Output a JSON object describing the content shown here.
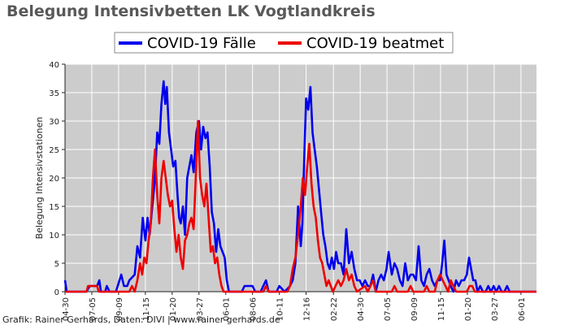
{
  "chart_data": {
    "type": "line",
    "title": "Belegung Intensivbetten LK Vogtlandkreis",
    "ylabel": "Belegung Intensivstationen",
    "xlabel": "",
    "ylim": [
      0,
      40
    ],
    "yticks": [
      0,
      5,
      10,
      15,
      20,
      25,
      30,
      35,
      40
    ],
    "grid": true,
    "legend_placement": "top-center",
    "background_color": "#cccccc",
    "x_tick_labels": [
      "04-30",
      "07-05",
      "09-09",
      "11-15",
      "01-20",
      "03-27",
      "06-01",
      "08-06",
      "10-11",
      "12-16",
      "02-22",
      "04-30",
      "07-05",
      "09-09",
      "11-15",
      "01-20",
      "03-27",
      "06-01"
    ],
    "x_tick_positions": [
      0,
      5,
      10,
      15,
      20,
      25,
      30,
      35,
      40,
      45,
      50.1,
      55.1,
      60.1,
      65.1,
      70.1,
      75.1,
      80.1,
      85.1
    ],
    "x_max": 88,
    "series": [
      {
        "name": "COVID-19 Fälle",
        "color": "#0000ee",
        "points": [
          [
            0,
            2
          ],
          [
            0.3,
            0
          ],
          [
            2,
            0
          ],
          [
            4,
            0
          ],
          [
            4.6,
            1
          ],
          [
            6,
            1
          ],
          [
            6.4,
            2
          ],
          [
            6.7,
            0
          ],
          [
            7.5,
            0
          ],
          [
            7.8,
            1
          ],
          [
            8.3,
            0
          ],
          [
            9.5,
            0
          ],
          [
            10.5,
            3
          ],
          [
            11,
            1
          ],
          [
            11.6,
            1
          ],
          [
            12,
            2
          ],
          [
            13,
            3
          ],
          [
            13.5,
            8
          ],
          [
            14,
            6
          ],
          [
            14.5,
            13
          ],
          [
            15,
            9
          ],
          [
            15.4,
            13
          ],
          [
            15.8,
            10
          ],
          [
            16.3,
            15
          ],
          [
            16.8,
            20
          ],
          [
            17.2,
            28
          ],
          [
            17.6,
            26
          ],
          [
            18,
            33
          ],
          [
            18.4,
            37
          ],
          [
            18.7,
            33
          ],
          [
            19,
            36
          ],
          [
            19.4,
            28
          ],
          [
            19.8,
            25
          ],
          [
            20.2,
            22
          ],
          [
            20.6,
            23
          ],
          [
            21,
            17
          ],
          [
            21.3,
            13
          ],
          [
            21.6,
            12
          ],
          [
            22,
            15
          ],
          [
            22.4,
            10
          ],
          [
            22.8,
            20
          ],
          [
            23.2,
            22
          ],
          [
            23.6,
            24
          ],
          [
            24,
            21
          ],
          [
            24.5,
            28
          ],
          [
            25,
            30
          ],
          [
            25.4,
            25
          ],
          [
            25.8,
            29
          ],
          [
            26.2,
            27
          ],
          [
            26.6,
            28
          ],
          [
            27,
            22
          ],
          [
            27.4,
            14
          ],
          [
            27.8,
            12
          ],
          [
            28.2,
            7
          ],
          [
            28.6,
            11
          ],
          [
            29,
            8
          ],
          [
            29.4,
            7
          ],
          [
            29.8,
            6
          ],
          [
            30.2,
            2
          ],
          [
            30.6,
            0
          ],
          [
            32,
            0
          ],
          [
            33,
            0
          ],
          [
            33.5,
            1
          ],
          [
            34,
            1
          ],
          [
            35,
            1
          ],
          [
            35.5,
            0
          ],
          [
            36.5,
            0
          ],
          [
            37.5,
            2
          ],
          [
            38,
            0
          ],
          [
            39.5,
            0
          ],
          [
            40,
            1
          ],
          [
            41,
            0
          ],
          [
            42,
            1
          ],
          [
            42.5,
            2
          ],
          [
            43,
            5
          ],
          [
            43.5,
            15
          ],
          [
            44,
            8
          ],
          [
            44.3,
            12
          ],
          [
            44.7,
            25
          ],
          [
            45,
            34
          ],
          [
            45.4,
            32
          ],
          [
            45.8,
            36
          ],
          [
            46.2,
            28
          ],
          [
            46.6,
            25
          ],
          [
            47,
            22
          ],
          [
            47.4,
            18
          ],
          [
            47.8,
            14
          ],
          [
            48.2,
            10
          ],
          [
            48.6,
            8
          ],
          [
            49,
            5
          ],
          [
            49.4,
            4
          ],
          [
            49.8,
            6
          ],
          [
            50.2,
            4
          ],
          [
            50.6,
            7
          ],
          [
            51,
            5
          ],
          [
            51.5,
            5
          ],
          [
            52,
            3
          ],
          [
            52.5,
            11
          ],
          [
            53,
            5
          ],
          [
            53.5,
            7
          ],
          [
            54,
            4
          ],
          [
            54.5,
            2
          ],
          [
            55,
            2
          ],
          [
            55.5,
            1
          ],
          [
            56,
            2
          ],
          [
            56.5,
            1
          ],
          [
            57,
            1
          ],
          [
            57.5,
            3
          ],
          [
            58,
            0
          ],
          [
            58.5,
            2
          ],
          [
            59,
            3
          ],
          [
            59.5,
            2
          ],
          [
            60,
            4
          ],
          [
            60.4,
            7
          ],
          [
            61,
            3
          ],
          [
            61.5,
            5
          ],
          [
            62,
            4
          ],
          [
            62.5,
            2
          ],
          [
            63,
            1
          ],
          [
            63.5,
            5
          ],
          [
            64,
            2
          ],
          [
            64.5,
            3
          ],
          [
            65,
            3
          ],
          [
            65.5,
            2
          ],
          [
            66,
            8
          ],
          [
            66.5,
            2
          ],
          [
            67,
            1
          ],
          [
            67.5,
            3
          ],
          [
            68,
            4
          ],
          [
            68.5,
            2
          ],
          [
            69,
            1
          ],
          [
            69.5,
            2
          ],
          [
            70,
            2
          ],
          [
            70.4,
            5
          ],
          [
            70.8,
            9
          ],
          [
            71.2,
            3
          ],
          [
            71.6,
            2
          ],
          [
            72,
            1
          ],
          [
            72.5,
            0
          ],
          [
            73,
            2
          ],
          [
            73.5,
            1
          ],
          [
            74,
            2
          ],
          [
            74.5,
            2
          ],
          [
            75,
            3
          ],
          [
            75.4,
            6
          ],
          [
            75.8,
            4
          ],
          [
            76.2,
            2
          ],
          [
            76.6,
            2
          ],
          [
            77,
            0
          ],
          [
            77.5,
            1
          ],
          [
            78,
            0
          ],
          [
            78.5,
            0
          ],
          [
            79,
            1
          ],
          [
            79.5,
            0
          ],
          [
            80,
            1
          ],
          [
            80.5,
            0
          ],
          [
            81,
            1
          ],
          [
            81.5,
            0
          ],
          [
            82,
            0
          ],
          [
            82.5,
            1
          ],
          [
            83,
            0
          ],
          [
            85,
            0
          ],
          [
            88,
            0
          ]
        ]
      },
      {
        "name": "COVID-19 beatmet",
        "color": "#ee0000",
        "points": [
          [
            0,
            0
          ],
          [
            4,
            0
          ],
          [
            4.3,
            1
          ],
          [
            6,
            1
          ],
          [
            6.3,
            0
          ],
          [
            12,
            0
          ],
          [
            12.5,
            1
          ],
          [
            13,
            0
          ],
          [
            13.5,
            2
          ],
          [
            14,
            5
          ],
          [
            14.4,
            3
          ],
          [
            14.8,
            6
          ],
          [
            15.2,
            5
          ],
          [
            15.6,
            9
          ],
          [
            16,
            12
          ],
          [
            16.4,
            20
          ],
          [
            16.8,
            25
          ],
          [
            17.2,
            17
          ],
          [
            17.6,
            12
          ],
          [
            18,
            20
          ],
          [
            18.4,
            23
          ],
          [
            18.8,
            20
          ],
          [
            19.2,
            17
          ],
          [
            19.6,
            15
          ],
          [
            20,
            16
          ],
          [
            20.4,
            11
          ],
          [
            20.8,
            7
          ],
          [
            21.2,
            10
          ],
          [
            21.6,
            6
          ],
          [
            22,
            4
          ],
          [
            22.4,
            9
          ],
          [
            22.8,
            10
          ],
          [
            23.2,
            12
          ],
          [
            23.6,
            13
          ],
          [
            24,
            11
          ],
          [
            24.4,
            20
          ],
          [
            24.8,
            30
          ],
          [
            25.2,
            20
          ],
          [
            25.6,
            17
          ],
          [
            26,
            15
          ],
          [
            26.4,
            19
          ],
          [
            26.8,
            13
          ],
          [
            27.2,
            7
          ],
          [
            27.6,
            8
          ],
          [
            28,
            5
          ],
          [
            28.4,
            6
          ],
          [
            28.8,
            3
          ],
          [
            29.2,
            1
          ],
          [
            29.6,
            0
          ],
          [
            37,
            0
          ],
          [
            37.5,
            1
          ],
          [
            38,
            0
          ],
          [
            41.5,
            0
          ],
          [
            42,
            1
          ],
          [
            42.5,
            4
          ],
          [
            43,
            6
          ],
          [
            43.5,
            10
          ],
          [
            44,
            15
          ],
          [
            44.4,
            20
          ],
          [
            44.8,
            17
          ],
          [
            45.2,
            22
          ],
          [
            45.6,
            26
          ],
          [
            46,
            19
          ],
          [
            46.4,
            15
          ],
          [
            46.8,
            13
          ],
          [
            47.2,
            9
          ],
          [
            47.6,
            6
          ],
          [
            48,
            5
          ],
          [
            48.4,
            3
          ],
          [
            48.8,
            1
          ],
          [
            49.2,
            2
          ],
          [
            49.6,
            1
          ],
          [
            50,
            0
          ],
          [
            50.5,
            1
          ],
          [
            51,
            2
          ],
          [
            51.5,
            1
          ],
          [
            52,
            2
          ],
          [
            52.5,
            4
          ],
          [
            53,
            2
          ],
          [
            53.5,
            3
          ],
          [
            54,
            1
          ],
          [
            54.5,
            0
          ],
          [
            56,
            1
          ],
          [
            56.5,
            0
          ],
          [
            57.5,
            2
          ],
          [
            58,
            0
          ],
          [
            61,
            0
          ],
          [
            61.5,
            1
          ],
          [
            62,
            0
          ],
          [
            64,
            0
          ],
          [
            64.5,
            1
          ],
          [
            65,
            0
          ],
          [
            67,
            0
          ],
          [
            67.5,
            1
          ],
          [
            68,
            0
          ],
          [
            69,
            0
          ],
          [
            69.5,
            2
          ],
          [
            70,
            3
          ],
          [
            70.5,
            2
          ],
          [
            71,
            1
          ],
          [
            71.5,
            0
          ],
          [
            72,
            2
          ],
          [
            72.5,
            1
          ],
          [
            73,
            0
          ],
          [
            75,
            0
          ],
          [
            75.5,
            1
          ],
          [
            76,
            1
          ],
          [
            76.5,
            0
          ],
          [
            88,
            0
          ]
        ]
      }
    ]
  },
  "credit": "Grafik: Rainer Gerhards, Daten: DIVI | www.rainer-gerhards.de"
}
